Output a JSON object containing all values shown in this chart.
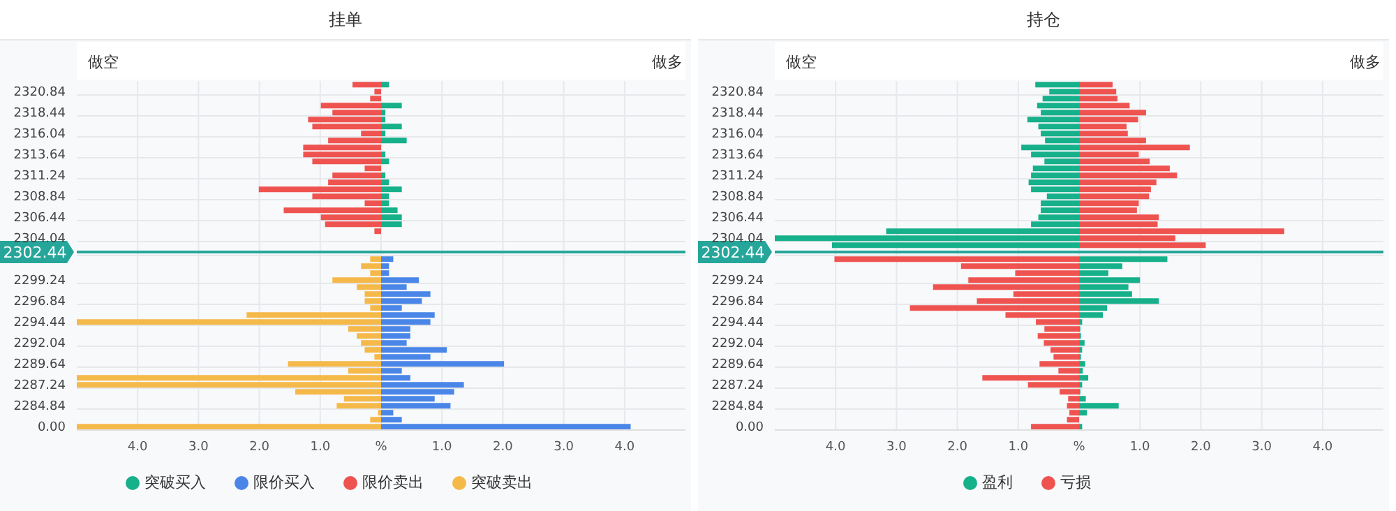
{
  "chart_data": [
    {
      "type": "bar",
      "title": "挂单",
      "orientation": "horizontal",
      "stacked": true,
      "annotations": [
        "做空",
        "做多"
      ],
      "categories": [
        null,
        "2320.84",
        null,
        null,
        "2318.44",
        null,
        null,
        "2316.04",
        null,
        null,
        "2313.64",
        null,
        null,
        "2311.24",
        null,
        null,
        "2308.84",
        null,
        null,
        "2306.44",
        null,
        null,
        "2304.04",
        null,
        "2302.44",
        null,
        null,
        null,
        "2299.24",
        null,
        null,
        "2296.84",
        null,
        null,
        "2294.44",
        null,
        null,
        "2292.04",
        null,
        null,
        "2289.64",
        null,
        null,
        "2287.24",
        null,
        null,
        "2284.84",
        null,
        null,
        "0.00"
      ],
      "series": [
        {
          "name": "突破买入",
          "color": "#16b08a",
          "values": [
            0.13,
            null,
            null,
            0.34,
            0.07,
            0.07,
            0.34,
            0.07,
            0.42,
            null,
            0.07,
            0.13,
            null,
            0.07,
            0.13,
            0.34,
            0.13,
            0.13,
            0.27,
            0.34,
            0.34,
            null,
            null,
            null,
            null,
            null,
            null,
            null,
            null,
            null,
            null,
            null,
            null,
            null,
            null,
            null,
            null,
            null,
            null,
            null,
            null,
            null,
            null,
            null,
            null,
            null,
            null,
            null,
            null,
            null
          ]
        },
        {
          "name": "限价买入",
          "color": "#4a86e8",
          "values": [
            null,
            null,
            null,
            null,
            null,
            null,
            null,
            null,
            null,
            null,
            null,
            null,
            null,
            null,
            null,
            null,
            null,
            null,
            null,
            null,
            null,
            null,
            null,
            null,
            null,
            0.2,
            0.13,
            0.13,
            0.62,
            0.42,
            0.81,
            0.67,
            0.34,
            0.88,
            0.81,
            0.48,
            0.48,
            0.42,
            1.08,
            0.81,
            2.02,
            0.34,
            0.48,
            1.36,
            1.2,
            0.88,
            1.14,
            0.2,
            0.34,
            4.1
          ]
        },
        {
          "name": "限价卖出",
          "color": "#ef5350",
          "values": [
            -0.47,
            -0.11,
            -0.18,
            -0.99,
            -0.8,
            -1.2,
            -1.13,
            -0.33,
            -0.87,
            -1.28,
            -1.28,
            -1.13,
            -0.27,
            -0.8,
            -0.87,
            -2.01,
            -1.13,
            -0.27,
            -1.6,
            -0.99,
            -0.92,
            -0.11,
            null,
            null,
            null,
            null,
            null,
            null,
            null,
            null,
            null,
            null,
            null,
            null,
            null,
            null,
            null,
            null,
            null,
            null,
            null,
            null,
            null,
            null,
            null,
            null,
            null,
            null,
            null,
            null
          ]
        },
        {
          "name": "突破卖出",
          "color": "#f5b94a",
          "values": [
            null,
            null,
            null,
            null,
            null,
            null,
            null,
            null,
            null,
            null,
            null,
            null,
            null,
            null,
            null,
            null,
            null,
            null,
            null,
            null,
            null,
            null,
            null,
            null,
            null,
            -0.18,
            -0.33,
            -0.18,
            -0.8,
            -0.4,
            -0.27,
            -0.27,
            -0.18,
            -2.21,
            -5,
            -0.54,
            -0.4,
            -0.33,
            -0.27,
            -0.11,
            -1.53,
            -0.54,
            -5,
            -5,
            -1.41,
            -0.61,
            -0.73,
            -0.05,
            -0.18,
            -5
          ]
        }
      ],
      "xlim": [
        -5,
        5
      ],
      "xticks": [
        {
          "value": -4,
          "label": "4.0"
        },
        {
          "value": -3,
          "label": "3.0"
        },
        {
          "value": -2,
          "label": "2.0"
        },
        {
          "value": -1,
          "label": "1.0"
        },
        {
          "value": 0,
          "label": "%"
        },
        {
          "value": 1,
          "label": "1.0"
        },
        {
          "value": 2,
          "label": "2.0"
        },
        {
          "value": 3,
          "label": "3.0"
        },
        {
          "value": 4,
          "label": "4.0"
        }
      ],
      "grid": true,
      "legend": "bottom",
      "ref_lines": [
        {
          "axis": "y",
          "value": "2302.44",
          "label": "2302.44",
          "color": "#26a69a"
        }
      ]
    },
    {
      "type": "bar",
      "title": "持仓",
      "orientation": "horizontal",
      "stacked": true,
      "annotations": [
        "做空",
        "做多"
      ],
      "categories": [
        null,
        "2320.84",
        null,
        null,
        "2318.44",
        null,
        null,
        "2316.04",
        null,
        null,
        "2313.64",
        null,
        null,
        "2311.24",
        null,
        null,
        "2308.84",
        null,
        null,
        "2306.44",
        null,
        null,
        "2304.04",
        null,
        "2302.44",
        null,
        null,
        null,
        "2299.24",
        null,
        null,
        "2296.84",
        null,
        null,
        "2294.44",
        null,
        null,
        "2292.04",
        null,
        null,
        "2289.64",
        null,
        null,
        "2287.24",
        null,
        null,
        "2284.84",
        null,
        null,
        "0.00"
      ],
      "series": [
        {
          "name": "盈利",
          "color": "#16b08a",
          "values": [
            -0.72,
            -0.49,
            -0.6,
            -0.69,
            -0.63,
            -0.85,
            -0.67,
            -0.63,
            -0.56,
            -0.95,
            -0.79,
            -0.57,
            -0.76,
            -0.79,
            -0.83,
            -0.79,
            -0.53,
            -0.63,
            -0.63,
            -0.67,
            -0.79,
            -3.17,
            -5,
            -4.06,
            null,
            1.45,
            0.71,
            0.48,
            1.0,
            0.81,
            0.87,
            1.31,
            0.46,
            0.39,
            0.05,
            0.02,
            0.03,
            0.09,
            0.05,
            0.03,
            0.1,
            0.06,
            0.15,
            0.05,
            0.02,
            0.11,
            0.65,
            0.13,
            null,
            0.05
          ]
        },
        {
          "name": "亏损",
          "color": "#ef5350",
          "values": [
            0.55,
            0.61,
            0.63,
            0.83,
            1.1,
            0.97,
            0.78,
            0.8,
            1.1,
            1.82,
            0.98,
            1.16,
            1.49,
            1.61,
            1.27,
            1.18,
            1.15,
            0.98,
            0.95,
            1.31,
            1.29,
            3.37,
            1.58,
            2.08,
            null,
            -4.02,
            -1.94,
            -1.05,
            -1.82,
            -2.4,
            -1.08,
            -1.68,
            -2.78,
            -1.21,
            -0.71,
            -0.57,
            -0.68,
            -0.58,
            -0.47,
            -0.42,
            -0.65,
            -0.34,
            -1.59,
            -0.84,
            -0.32,
            -0.18,
            -0.2,
            -0.16,
            -0.2,
            -0.79
          ]
        }
      ],
      "xlim": [
        -5,
        5
      ],
      "xticks": [
        {
          "value": -4,
          "label": "4.0"
        },
        {
          "value": -3,
          "label": "3.0"
        },
        {
          "value": -2,
          "label": "2.0"
        },
        {
          "value": -1,
          "label": "1.0"
        },
        {
          "value": 0,
          "label": "%"
        },
        {
          "value": 1,
          "label": "1.0"
        },
        {
          "value": 2,
          "label": "2.0"
        },
        {
          "value": 3,
          "label": "3.0"
        },
        {
          "value": 4,
          "label": "4.0"
        }
      ],
      "grid": true,
      "legend": "bottom",
      "ref_lines": [
        {
          "axis": "y",
          "value": "2302.44",
          "label": "2302.44",
          "color": "#26a69a"
        }
      ]
    }
  ]
}
